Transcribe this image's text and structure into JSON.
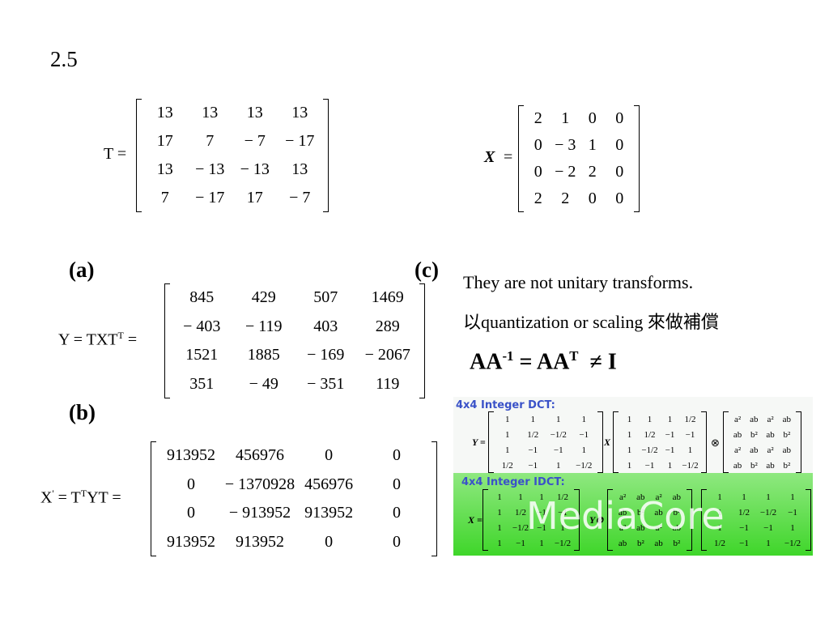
{
  "title": "2.5",
  "matrix_T": {
    "label": "T =",
    "rows": [
      [
        "13",
        "13",
        "13",
        "13"
      ],
      [
        "17",
        "7",
        "− 7",
        "− 17"
      ],
      [
        "13",
        "− 13",
        "− 13",
        "13"
      ],
      [
        "7",
        "− 17",
        "17",
        "− 7"
      ]
    ]
  },
  "matrix_X": {
    "label": "X",
    "eq": "=",
    "rows": [
      [
        "2",
        "1",
        "0",
        "0"
      ],
      [
        "0",
        "− 3",
        "1",
        "0"
      ],
      [
        "0",
        "− 2",
        "2",
        "0"
      ],
      [
        "2",
        "2",
        "0",
        "0"
      ]
    ]
  },
  "part_a": {
    "label": "(a)",
    "lhs": "Y = TXT",
    "lhs_sup": "T",
    "eq": "=",
    "rows": [
      [
        "845",
        "429",
        "507",
        "1469"
      ],
      [
        "− 403",
        "− 119",
        "403",
        "289"
      ],
      [
        "1521",
        "1885",
        "− 169",
        "− 2067"
      ],
      [
        "351",
        "− 49",
        "− 351",
        "119"
      ]
    ]
  },
  "part_b": {
    "label": "(b)",
    "lhs": "X",
    "lhs_sup1": "'",
    "mid": "= T",
    "lhs_sup2": "T",
    "end": "YT =",
    "rows": [
      [
        "913952",
        "456976",
        "0",
        "0"
      ],
      [
        "0",
        "− 1370928",
        "456976",
        "0"
      ],
      [
        "0",
        "− 913952",
        "913952",
        "0"
      ],
      [
        "913952",
        "913952",
        "0",
        "0"
      ]
    ]
  },
  "part_c": {
    "label": "(c)",
    "line1": "They are not unitary transforms.",
    "line2": "以quantization or scaling 來做補償",
    "eq_base": "AA",
    "eq_sup1": "-1",
    "eq_mid": "= AA",
    "eq_sup2": "T",
    "eq_end": "≠ I"
  },
  "figure": {
    "dct_title": "4x4 Integer DCT:",
    "dct_lhs": "Y =",
    "dct_m1": [
      [
        "1",
        "1",
        "1",
        "1"
      ],
      [
        "1",
        "1/2",
        "−1/2",
        "−1"
      ],
      [
        "1",
        "−1",
        "−1",
        "1"
      ],
      [
        "1/2",
        "−1",
        "1",
        "−1/2"
      ]
    ],
    "dct_mid": "X",
    "dct_m2": [
      [
        "1",
        "1",
        "1",
        "1/2"
      ],
      [
        "1",
        "1/2",
        "−1",
        "−1"
      ],
      [
        "1",
        "−1/2",
        "−1",
        "1"
      ],
      [
        "1",
        "−1",
        "1",
        "−1/2"
      ]
    ],
    "dct_op": "⊗",
    "dct_m3": [
      [
        "a²",
        "ab",
        "a²",
        "ab"
      ],
      [
        "ab",
        "b²",
        "ab",
        "b²"
      ],
      [
        "a²",
        "ab",
        "a²",
        "ab"
      ],
      [
        "ab",
        "b²",
        "ab",
        "b²"
      ]
    ],
    "idct_title": "4x4 Integer IDCT:",
    "idct_lhs": "X =",
    "idct_m1": [
      [
        "1",
        "1",
        "1",
        "1/2"
      ],
      [
        "1",
        "1/2",
        "−1",
        "−1"
      ],
      [
        "1",
        "−1/2",
        "−1",
        "1"
      ],
      [
        "1",
        "−1",
        "1",
        "−1/2"
      ]
    ],
    "idct_mid": "Y⊗",
    "idct_m2": [
      [
        "a²",
        "ab",
        "a²",
        "ab"
      ],
      [
        "ab",
        "b²",
        "ab",
        "b²"
      ],
      [
        "a²",
        "ab",
        "a²",
        "ab"
      ],
      [
        "ab",
        "b²",
        "ab",
        "b²"
      ]
    ],
    "idct_m3": [
      [
        "1",
        "1",
        "1",
        "1"
      ],
      [
        "1",
        "1/2",
        "−1/2",
        "−1"
      ],
      [
        "1",
        "−1",
        "−1",
        "1"
      ],
      [
        "1/2",
        "−1",
        "1",
        "−1/2"
      ]
    ],
    "watermark": "MediaCore"
  }
}
